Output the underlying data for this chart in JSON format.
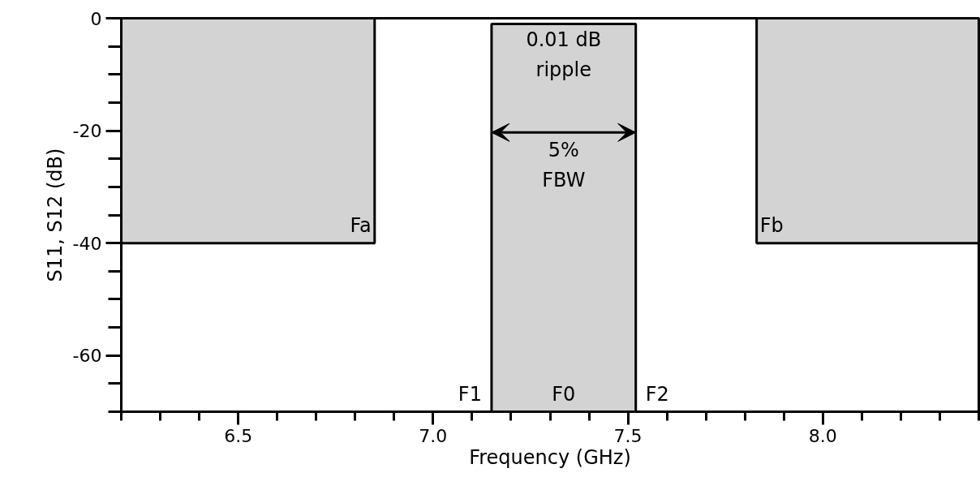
{
  "chart_data": {
    "type": "histogram",
    "xlabel": "Frequency (GHz)",
    "ylabel": "S11, S12 (dB)",
    "bins": [
      6.2,
      6.85,
      7.15,
      7.52,
      7.83,
      8.4
    ],
    "values": [
      -40,
      null,
      69,
      null,
      -40
    ],
    "base": [
      0,
      null,
      -70,
      null,
      0
    ],
    "colors": [
      "#d3d3d3",
      null,
      "#d3d3d3",
      null,
      "#d3d3d3"
    ],
    "xlim": [
      6.2,
      8.4
    ],
    "xticks": [
      6.5,
      {
        "value": 7.0,
        "label": "7.0"
      },
      7.5,
      {
        "value": 8.0,
        "label": "8.0"
      }
    ],
    "ylim": [
      -70,
      0
    ],
    "yticks": [
      0,
      -20,
      -40,
      -60
    ],
    "grid": false,
    "annotations": [
      "Fa",
      "Fb",
      "F1",
      "F0",
      "F2",
      "0.01 dB\nripple",
      "5%\nFBW"
    ]
  }
}
